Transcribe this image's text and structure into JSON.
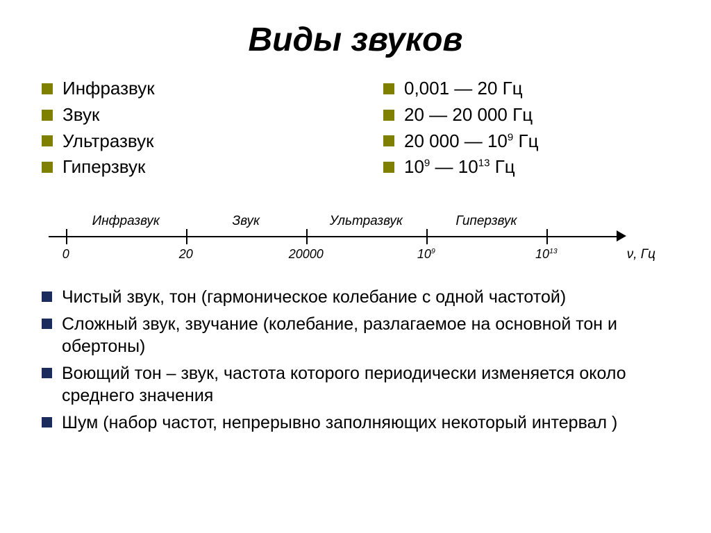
{
  "title": "Виды звуков",
  "colors": {
    "bullet_olive": "#808000",
    "bullet_navy": "#1a2b5c",
    "text": "#000000",
    "background": "#ffffff"
  },
  "types": [
    {
      "name": "Инфразвук",
      "range": "0,001 — 20 Гц"
    },
    {
      "name": "Звук",
      "range": "20 — 20 000 Гц"
    },
    {
      "name": "Ультразвук",
      "range_html": "20 000 — 10<sup>9</sup> Гц"
    },
    {
      "name": "Гиперзвук",
      "range_html": "10<sup>9</sup> — 10<sup>13</sup> Гц"
    }
  ],
  "axis": {
    "unit": "ν, Гц",
    "ticks": [
      {
        "pos_pct": 3,
        "label": "0"
      },
      {
        "pos_pct": 24,
        "label": "20"
      },
      {
        "pos_pct": 45,
        "label": "20000"
      },
      {
        "pos_pct": 66,
        "label_html": "10<sup>9</sup>"
      },
      {
        "pos_pct": 87,
        "label_html": "10<sup>13</sup>"
      }
    ],
    "ranges": [
      {
        "center_pct": 13.5,
        "label": "Инфразвук"
      },
      {
        "center_pct": 34.5,
        "label": "Звук"
      },
      {
        "center_pct": 55.5,
        "label": "Ультразвук"
      },
      {
        "center_pct": 76.5,
        "label": "Гиперзвук"
      }
    ]
  },
  "descriptions": [
    "Чистый звук, тон (гармоническое колебание с одной частотой)",
    "Сложный звук, звучание (колебание, разлагаемое на основной тон и обертоны)",
    "Воющий тон – звук, частота которого периодически изменяется около среднего значения",
    "Шум (набор частот, непрерывно заполняющих некоторый интервал )"
  ]
}
